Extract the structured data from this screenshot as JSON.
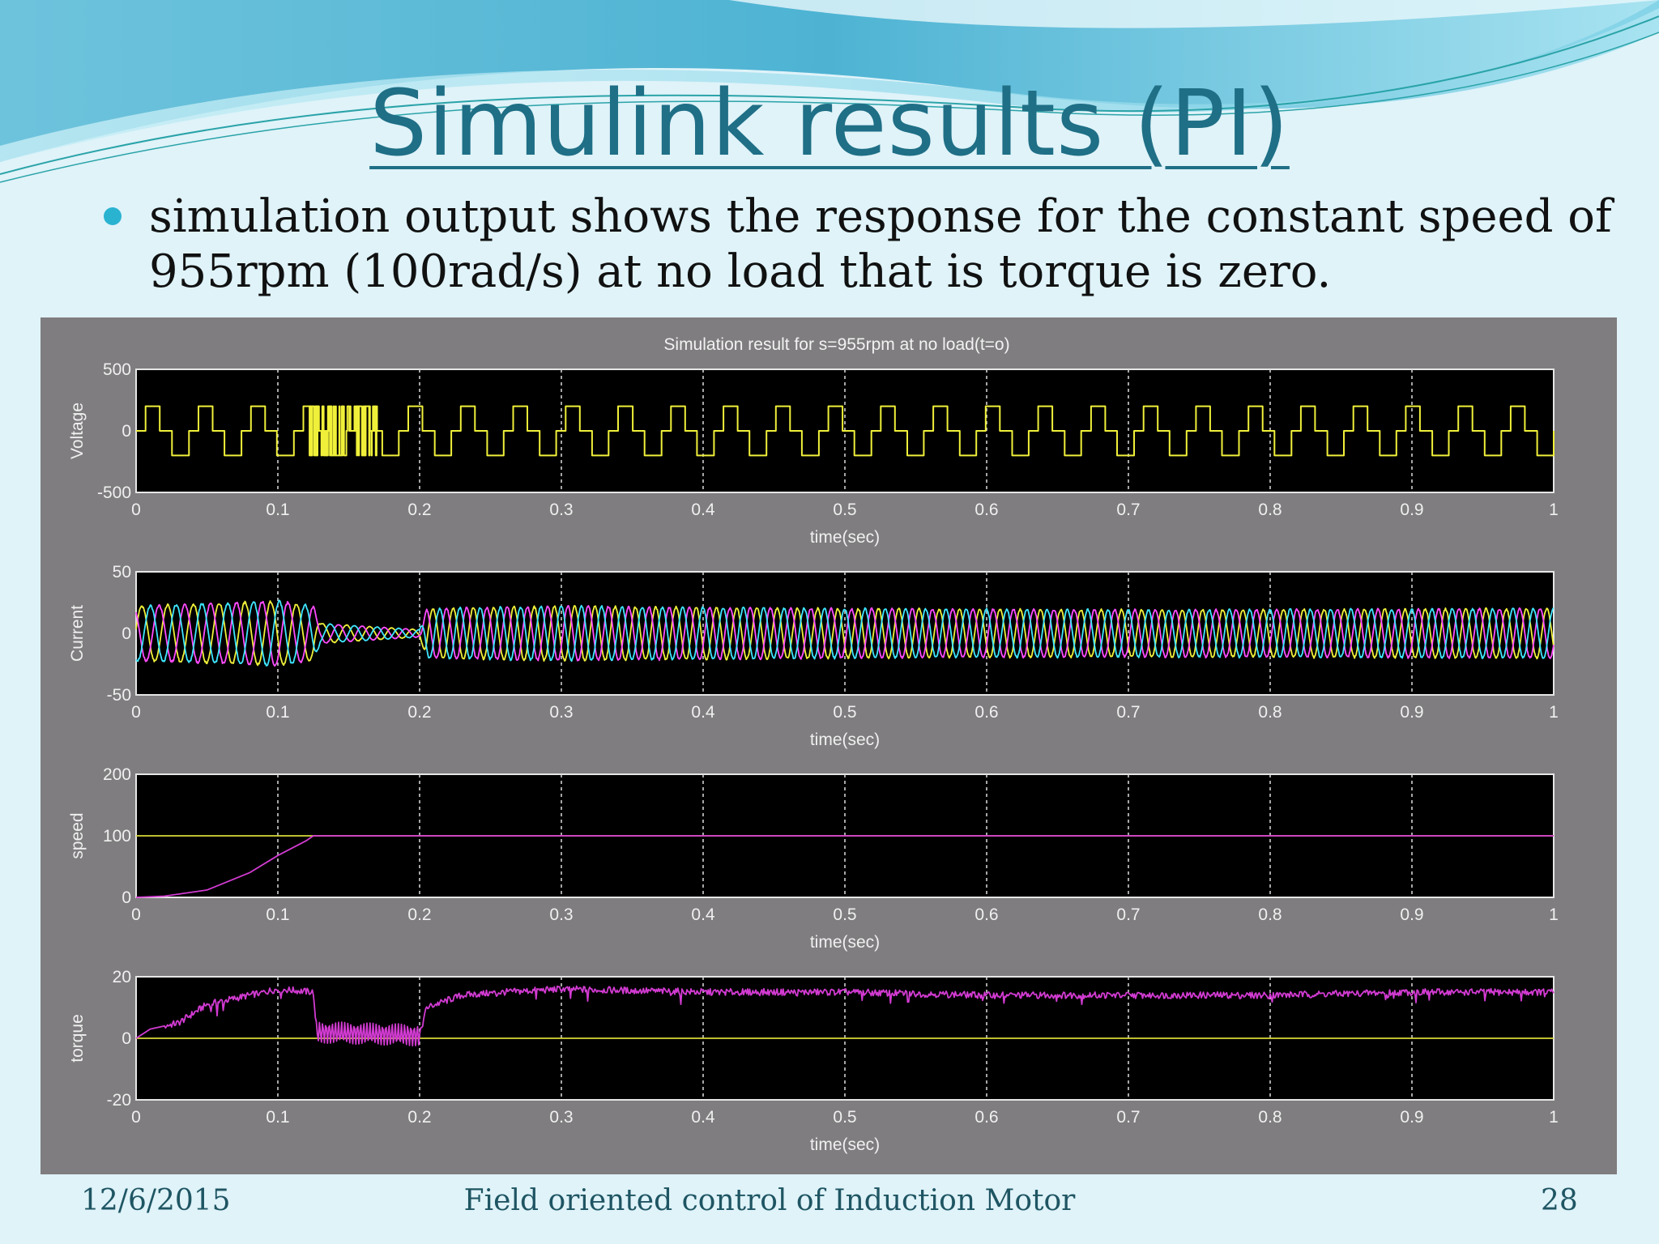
{
  "slide": {
    "title": "Simulink results (PI)",
    "bullet": "simulation  output shows the response for the constant speed of 955rpm (100rad/s) at no load that is torque is zero.",
    "footer_date": "12/6/2015",
    "footer_center": "Field oriented control of Induction Motor",
    "page_number": "28"
  },
  "colors": {
    "title": "#1f6f86",
    "figure_bg": "#7f7d7f",
    "plot_bg": "#000000",
    "voltage": "#f0f03a",
    "current_a": "#f0f03a",
    "current_b": "#ff4bff",
    "current_c": "#3ee6ff",
    "speed_ref": "#d8d83a",
    "speed": "#d23bd2",
    "torque_ref": "#d8d83a",
    "torque": "#d23bd2"
  },
  "chart_data": [
    {
      "type": "line",
      "title": "Simulation result for s=955rpm at no load(t=o)",
      "ylabel": "Voltage",
      "xlabel": "time(sec)",
      "xlim": [
        0,
        1
      ],
      "ylim": [
        -500,
        500
      ],
      "yticks": [
        "500",
        "0",
        "-500"
      ],
      "xticks": [
        "0",
        "0.1",
        "0.2",
        "0.3",
        "0.4",
        "0.5",
        "0.6",
        "0.7",
        "0.8",
        "0.9",
        "1"
      ],
      "grid": true,
      "series": [
        {
          "shape": "pwm-square-wave",
          "levels": [
            -200,
            0,
            200
          ],
          "fundamental_hz": 27,
          "color": "voltage"
        }
      ]
    },
    {
      "type": "line",
      "ylabel": "Current",
      "xlabel": "time(sec)",
      "xlim": [
        0,
        1
      ],
      "ylim": [
        -50,
        50
      ],
      "yticks": [
        "50",
        "0",
        "-50"
      ],
      "xticks": [
        "0",
        "0.1",
        "0.2",
        "0.3",
        "0.4",
        "0.5",
        "0.6",
        "0.7",
        "0.8",
        "0.9",
        "1"
      ],
      "grid": true,
      "series": [
        {
          "shape": "three-phase-sine",
          "phase_deg": 0,
          "color": "current_a"
        },
        {
          "shape": "three-phase-sine",
          "phase_deg": 120,
          "color": "current_b"
        },
        {
          "shape": "three-phase-sine",
          "phase_deg": 240,
          "color": "current_c"
        }
      ],
      "envelope": [
        [
          0,
          22
        ],
        [
          0.1,
          26
        ],
        [
          0.125,
          22
        ],
        [
          0.13,
          8
        ],
        [
          0.2,
          3
        ],
        [
          0.205,
          20
        ],
        [
          0.3,
          22
        ],
        [
          0.5,
          20
        ],
        [
          0.7,
          19
        ],
        [
          1,
          20
        ]
      ],
      "frequency_hz": [
        [
          0,
          55
        ],
        [
          0.125,
          55
        ],
        [
          0.2,
          70
        ],
        [
          1,
          70
        ]
      ]
    },
    {
      "type": "line",
      "ylabel": "speed",
      "xlabel": "time(sec)",
      "xlim": [
        0,
        1
      ],
      "ylim": [
        0,
        200
      ],
      "yticks": [
        "200",
        "100",
        "0"
      ],
      "xticks": [
        "0",
        "0.1",
        "0.2",
        "0.3",
        "0.4",
        "0.5",
        "0.6",
        "0.7",
        "0.8",
        "0.9",
        "1"
      ],
      "grid": true,
      "series": [
        {
          "points": [
            [
              0,
              100
            ],
            [
              1,
              100
            ]
          ],
          "color": "speed_ref"
        },
        {
          "points": [
            [
              0,
              0
            ],
            [
              0.02,
              2
            ],
            [
              0.05,
              12
            ],
            [
              0.08,
              40
            ],
            [
              0.1,
              68
            ],
            [
              0.12,
              92
            ],
            [
              0.125,
              100
            ],
            [
              1,
              100
            ]
          ],
          "color": "speed"
        }
      ]
    },
    {
      "type": "line",
      "ylabel": "torque",
      "xlabel": "time(sec)",
      "xlim": [
        0,
        1
      ],
      "ylim": [
        -20,
        20
      ],
      "yticks": [
        "20",
        "0",
        "-20"
      ],
      "xticks": [
        "0",
        "0.1",
        "0.2",
        "0.3",
        "0.4",
        "0.5",
        "0.6",
        "0.7",
        "0.8",
        "0.9",
        "1"
      ],
      "grid": true,
      "series": [
        {
          "points": [
            [
              0,
              0
            ],
            [
              1,
              0
            ]
          ],
          "color": "torque_ref"
        },
        {
          "points": [
            [
              0,
              0
            ],
            [
              0.01,
              3
            ],
            [
              0.03,
              5
            ],
            [
              0.05,
              11
            ],
            [
              0.07,
              13
            ],
            [
              0.1,
              16
            ],
            [
              0.125,
              15
            ],
            [
              0.127,
              2
            ],
            [
              0.2,
              1
            ],
            [
              0.205,
              10
            ],
            [
              0.23,
              14
            ],
            [
              0.26,
              15
            ],
            [
              0.3,
              16
            ],
            [
              0.4,
              15
            ],
            [
              0.5,
              15
            ],
            [
              0.6,
              14
            ],
            [
              0.7,
              14
            ],
            [
              0.8,
              14
            ],
            [
              0.9,
              15
            ],
            [
              1,
              15
            ]
          ],
          "color": "torque"
        }
      ]
    }
  ]
}
